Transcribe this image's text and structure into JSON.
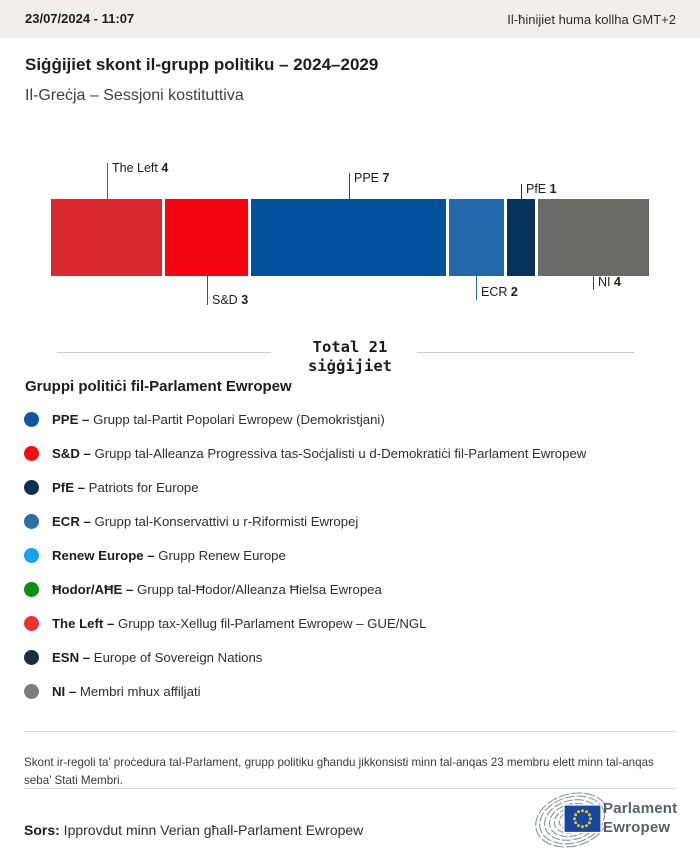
{
  "header": {
    "date": "23/07/2024 - 11:07",
    "timezone_note": "Il-ħinijiet huma kollha GMT+2"
  },
  "title": "Siġġijiet skont il-grupp politiku – 2024–2029",
  "subtitle": "Il-Greċja – Sessjoni kostituttiva",
  "chart_data": {
    "type": "bar",
    "orientation": "horizontal-stacked",
    "total_seats": 21,
    "total_label_line1": "Total 21",
    "total_label_line2": "siġġijiet",
    "groups": [
      {
        "name": "The Left",
        "seats": 4,
        "color": "#d9282e",
        "label_side": "above"
      },
      {
        "name": "S&D",
        "seats": 3,
        "color": "#f30511",
        "label_side": "below"
      },
      {
        "name": "PPE",
        "seats": 7,
        "color": "#02519c",
        "label_side": "above"
      },
      {
        "name": "ECR",
        "seats": 2,
        "color": "#2268ab",
        "label_side": "below"
      },
      {
        "name": "PfE",
        "seats": 1,
        "color": "#063158",
        "label_side": "above"
      },
      {
        "name": "NI",
        "seats": 4,
        "color": "#6a6a69",
        "label_side": "below",
        "tick_color": "#494949"
      }
    ]
  },
  "legend": {
    "heading": "Gruppi politiċi fil-Parlament Ewropew",
    "items": [
      {
        "abbr": "PPE",
        "name": "Grupp tal-Partit Popolari Ewropew (Demokristjani)",
        "color": "#1057a0"
      },
      {
        "abbr": "S&D",
        "name": "Grupp tal-Alleanza Progressiva tas-Soċjalisti u d-Demokratiċi fil-Parlament Ewropew",
        "color": "#f20d12"
      },
      {
        "abbr": "PfE",
        "name": "Patriots for Europe",
        "color": "#0b2d56"
      },
      {
        "abbr": "ECR",
        "name": "Grupp tal-Konservattivi u r-Riformisti Ewropej",
        "color": "#2e6da8"
      },
      {
        "abbr": "Renew Europe",
        "name": "Grupp Renew Europe",
        "color": "#19a3f1"
      },
      {
        "abbr": "Ħodor/AĦE",
        "name": "Grupp tal-Ħodor/Alleanza Ħielsa Ewropea",
        "color": "#0f8e14"
      },
      {
        "abbr": "The Left",
        "name": "Grupp tax-Xellug fil-Parlament Ewropew – GUE/NGL",
        "color": "#e93338"
      },
      {
        "abbr": "ESN",
        "name": "Europe of Sovereign Nations",
        "color": "#212b3a"
      },
      {
        "abbr": "NI",
        "name": "Membri mhux affiljati",
        "color": "#7d7d7b"
      }
    ]
  },
  "footnote": "Skont ir-regoli ta’ proċedura tal-Parlament, grupp politiku għandu jikkonsisti minn tal-anqas 23 membru elett minn tal-anqas seba’ Stati Membri.",
  "source": {
    "label": "Sors:",
    "text": " Ipprovdut minn Verian għall-Parlament Ewropew"
  },
  "logo": {
    "line1": "Parlament",
    "line2": "Ewropew"
  }
}
